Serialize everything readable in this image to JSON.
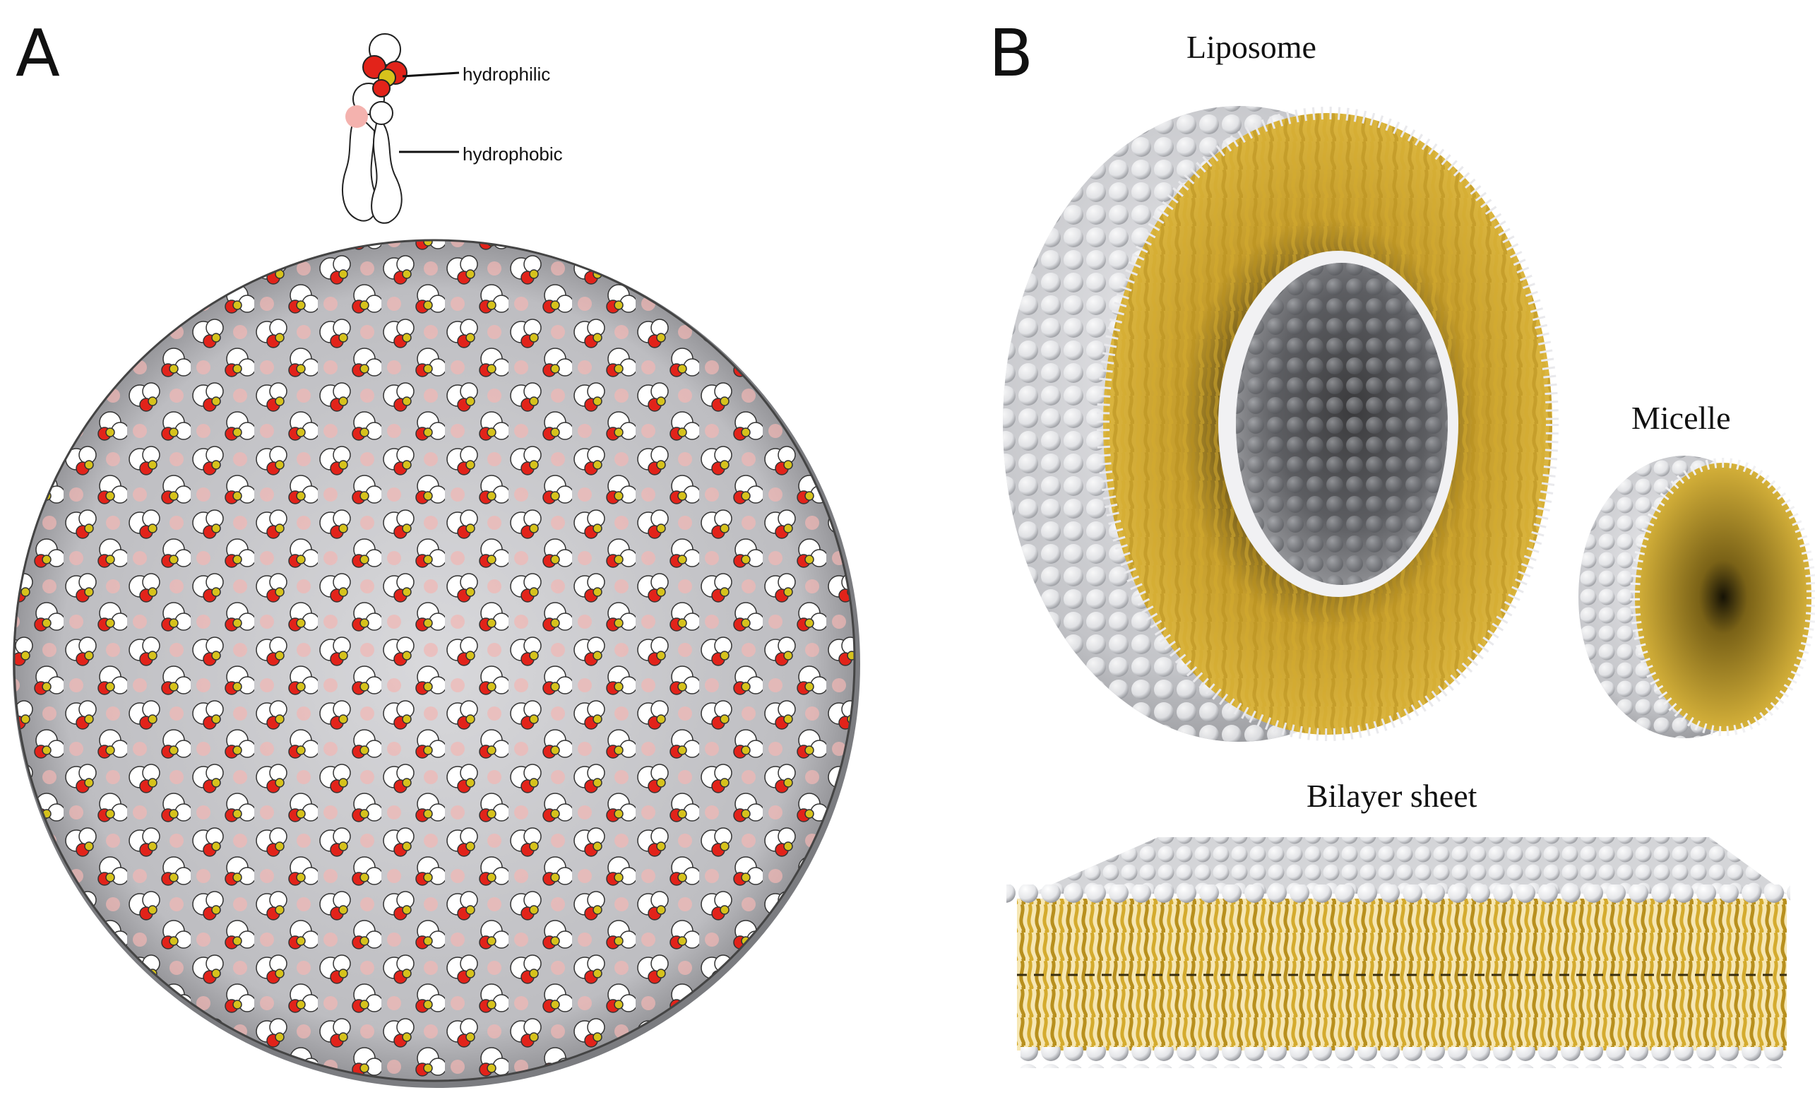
{
  "panel_a": {
    "letter": "A",
    "labels": {
      "hydrophilic": "hydrophilic",
      "hydrophobic": "hydrophobic"
    }
  },
  "panel_b": {
    "letter": "B",
    "titles": {
      "liposome": "Liposome",
      "micelle": "Micelle",
      "bilayer": "Bilayer sheet"
    }
  },
  "colors": {
    "head_white": "#ffffff",
    "phosphate_red": "#e2231a",
    "phosphorus_yellow": "#d6c21c",
    "tail_gold": "#cfa82f",
    "sphere_grey": "#bfc0c4",
    "outline": "#222222"
  }
}
